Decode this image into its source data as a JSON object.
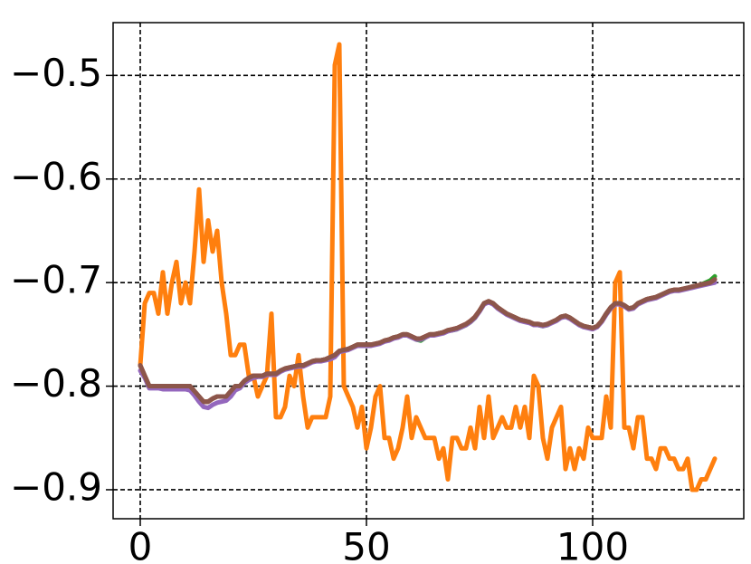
{
  "chart_data": {
    "type": "line",
    "x": [
      0,
      1,
      2,
      3,
      4,
      5,
      6,
      7,
      8,
      9,
      10,
      11,
      12,
      13,
      14,
      15,
      16,
      17,
      18,
      19,
      20,
      21,
      22,
      23,
      24,
      25,
      26,
      27,
      28,
      29,
      30,
      31,
      32,
      33,
      34,
      35,
      36,
      37,
      38,
      39,
      40,
      41,
      42,
      43,
      44,
      45,
      46,
      47,
      48,
      49,
      50,
      51,
      52,
      53,
      54,
      55,
      56,
      57,
      58,
      59,
      60,
      61,
      62,
      63,
      64,
      65,
      66,
      67,
      68,
      69,
      70,
      71,
      72,
      73,
      74,
      75,
      76,
      77,
      78,
      79,
      80,
      81,
      82,
      83,
      84,
      85,
      86,
      87,
      88,
      89,
      90,
      91,
      92,
      93,
      94,
      95,
      96,
      97,
      98,
      99,
      100,
      101,
      102,
      103,
      104,
      105,
      106,
      107,
      108,
      109,
      110,
      111,
      112,
      113,
      114,
      115,
      116,
      117,
      118,
      119,
      120,
      121,
      122,
      123,
      124,
      125,
      126,
      127
    ],
    "series": [
      {
        "name": "orange",
        "color": "#ff7f0e",
        "values": [
          -0.78,
          -0.72,
          -0.71,
          -0.71,
          -0.73,
          -0.69,
          -0.73,
          -0.7,
          -0.68,
          -0.72,
          -0.7,
          -0.72,
          -0.67,
          -0.61,
          -0.68,
          -0.64,
          -0.67,
          -0.65,
          -0.7,
          -0.73,
          -0.77,
          -0.77,
          -0.76,
          -0.76,
          -0.79,
          -0.79,
          -0.81,
          -0.8,
          -0.79,
          -0.73,
          -0.83,
          -0.83,
          -0.82,
          -0.79,
          -0.8,
          -0.77,
          -0.81,
          -0.84,
          -0.83,
          -0.83,
          -0.83,
          -0.83,
          -0.81,
          -0.49,
          -0.47,
          -0.8,
          -0.81,
          -0.82,
          -0.84,
          -0.82,
          -0.86,
          -0.84,
          -0.81,
          -0.8,
          -0.85,
          -0.85,
          -0.87,
          -0.86,
          -0.84,
          -0.81,
          -0.85,
          -0.83,
          -0.84,
          -0.85,
          -0.85,
          -0.85,
          -0.87,
          -0.86,
          -0.89,
          -0.85,
          -0.85,
          -0.86,
          -0.86,
          -0.84,
          -0.86,
          -0.82,
          -0.85,
          -0.81,
          -0.85,
          -0.84,
          -0.83,
          -0.84,
          -0.84,
          -0.82,
          -0.84,
          -0.82,
          -0.85,
          -0.79,
          -0.8,
          -0.85,
          -0.87,
          -0.84,
          -0.83,
          -0.82,
          -0.88,
          -0.86,
          -0.88,
          -0.86,
          -0.87,
          -0.84,
          -0.85,
          -0.85,
          -0.85,
          -0.81,
          -0.84,
          -0.7,
          -0.69,
          -0.84,
          -0.84,
          -0.86,
          -0.83,
          -0.83,
          -0.87,
          -0.87,
          -0.88,
          -0.86,
          -0.86,
          -0.87,
          -0.87,
          -0.88,
          -0.88,
          -0.87,
          -0.9,
          -0.9,
          -0.89,
          -0.89,
          -0.88,
          -0.87
        ]
      },
      {
        "name": "green",
        "color": "#2ca02c",
        "values": [
          -0.78,
          -0.79,
          -0.8,
          -0.8,
          -0.8,
          -0.8,
          -0.8,
          -0.8,
          -0.8,
          -0.8,
          -0.8,
          -0.8,
          -0.805,
          -0.81,
          -0.815,
          -0.815,
          -0.812,
          -0.81,
          -0.81,
          -0.81,
          -0.805,
          -0.8,
          -0.8,
          -0.795,
          -0.792,
          -0.79,
          -0.79,
          -0.79,
          -0.788,
          -0.788,
          -0.788,
          -0.785,
          -0.783,
          -0.782,
          -0.781,
          -0.78,
          -0.78,
          -0.778,
          -0.776,
          -0.775,
          -0.775,
          -0.774,
          -0.772,
          -0.77,
          -0.766,
          -0.765,
          -0.764,
          -0.762,
          -0.76,
          -0.76,
          -0.76,
          -0.76,
          -0.759,
          -0.758,
          -0.756,
          -0.755,
          -0.753,
          -0.752,
          -0.75,
          -0.75,
          -0.752,
          -0.755,
          -0.756,
          -0.753,
          -0.75,
          -0.75,
          -0.749,
          -0.748,
          -0.746,
          -0.746,
          -0.745,
          -0.743,
          -0.741,
          -0.738,
          -0.734,
          -0.727,
          -0.72,
          -0.718,
          -0.72,
          -0.724,
          -0.727,
          -0.73,
          -0.732,
          -0.734,
          -0.736,
          -0.737,
          -0.738,
          -0.74,
          -0.741,
          -0.742,
          -0.741,
          -0.738,
          -0.736,
          -0.733,
          -0.732,
          -0.734,
          -0.737,
          -0.74,
          -0.742,
          -0.743,
          -0.744,
          -0.742,
          -0.737,
          -0.73,
          -0.724,
          -0.72,
          -0.72,
          -0.722,
          -0.725,
          -0.724,
          -0.72,
          -0.718,
          -0.716,
          -0.715,
          -0.714,
          -0.712,
          -0.71,
          -0.708,
          -0.707,
          -0.707,
          -0.706,
          -0.705,
          -0.704,
          -0.703,
          -0.702,
          -0.7,
          -0.698,
          -0.694
        ]
      },
      {
        "name": "red",
        "color": "#d62728",
        "values": [
          -0.78,
          -0.79,
          -0.8,
          -0.8,
          -0.8,
          -0.8,
          -0.8,
          -0.8,
          -0.8,
          -0.8,
          -0.8,
          -0.8,
          -0.805,
          -0.81,
          -0.815,
          -0.815,
          -0.812,
          -0.81,
          -0.81,
          -0.81,
          -0.805,
          -0.8,
          -0.8,
          -0.795,
          -0.792,
          -0.79,
          -0.79,
          -0.79,
          -0.788,
          -0.788,
          -0.788,
          -0.785,
          -0.783,
          -0.782,
          -0.781,
          -0.78,
          -0.78,
          -0.778,
          -0.776,
          -0.775,
          -0.775,
          -0.774,
          -0.772,
          -0.77,
          -0.766,
          -0.765,
          -0.764,
          -0.762,
          -0.76,
          -0.76,
          -0.76,
          -0.76,
          -0.759,
          -0.758,
          -0.756,
          -0.755,
          -0.753,
          -0.752,
          -0.75,
          -0.75,
          -0.752,
          -0.754,
          -0.754,
          -0.752,
          -0.75,
          -0.75,
          -0.749,
          -0.748,
          -0.746,
          -0.745,
          -0.744,
          -0.742,
          -0.74,
          -0.737,
          -0.733,
          -0.727,
          -0.72,
          -0.718,
          -0.72,
          -0.724,
          -0.727,
          -0.73,
          -0.732,
          -0.734,
          -0.736,
          -0.737,
          -0.738,
          -0.74,
          -0.74,
          -0.741,
          -0.74,
          -0.738,
          -0.736,
          -0.733,
          -0.732,
          -0.734,
          -0.737,
          -0.74,
          -0.742,
          -0.743,
          -0.744,
          -0.742,
          -0.737,
          -0.73,
          -0.724,
          -0.72,
          -0.72,
          -0.722,
          -0.725,
          -0.724,
          -0.72,
          -0.718,
          -0.716,
          -0.715,
          -0.714,
          -0.712,
          -0.71,
          -0.708,
          -0.707,
          -0.707,
          -0.706,
          -0.705,
          -0.704,
          -0.703,
          -0.702,
          -0.701,
          -0.7,
          -0.697
        ]
      },
      {
        "name": "purple",
        "color": "#9467bd",
        "values": [
          -0.785,
          -0.792,
          -0.802,
          -0.802,
          -0.802,
          -0.803,
          -0.803,
          -0.803,
          -0.803,
          -0.803,
          -0.803,
          -0.804,
          -0.809,
          -0.815,
          -0.82,
          -0.821,
          -0.818,
          -0.816,
          -0.815,
          -0.814,
          -0.81,
          -0.804,
          -0.802,
          -0.797,
          -0.794,
          -0.792,
          -0.791,
          -0.791,
          -0.789,
          -0.789,
          -0.789,
          -0.786,
          -0.784,
          -0.783,
          -0.782,
          -0.781,
          -0.781,
          -0.779,
          -0.777,
          -0.776,
          -0.776,
          -0.775,
          -0.774,
          -0.772,
          -0.767,
          -0.766,
          -0.765,
          -0.763,
          -0.761,
          -0.761,
          -0.761,
          -0.761,
          -0.76,
          -0.759,
          -0.757,
          -0.756,
          -0.754,
          -0.753,
          -0.751,
          -0.751,
          -0.753,
          -0.755,
          -0.755,
          -0.753,
          -0.751,
          -0.751,
          -0.75,
          -0.749,
          -0.747,
          -0.746,
          -0.745,
          -0.743,
          -0.741,
          -0.738,
          -0.734,
          -0.728,
          -0.721,
          -0.719,
          -0.721,
          -0.725,
          -0.728,
          -0.731,
          -0.733,
          -0.735,
          -0.737,
          -0.738,
          -0.739,
          -0.741,
          -0.741,
          -0.742,
          -0.741,
          -0.739,
          -0.737,
          -0.734,
          -0.733,
          -0.735,
          -0.738,
          -0.741,
          -0.743,
          -0.744,
          -0.745,
          -0.743,
          -0.738,
          -0.731,
          -0.725,
          -0.721,
          -0.721,
          -0.723,
          -0.726,
          -0.725,
          -0.721,
          -0.719,
          -0.717,
          -0.716,
          -0.715,
          -0.713,
          -0.711,
          -0.709,
          -0.708,
          -0.708,
          -0.707,
          -0.706,
          -0.705,
          -0.704,
          -0.703,
          -0.702,
          -0.701,
          -0.7
        ]
      },
      {
        "name": "brown",
        "color": "#8c564b",
        "values": [
          -0.78,
          -0.79,
          -0.8,
          -0.8,
          -0.8,
          -0.8,
          -0.8,
          -0.8,
          -0.8,
          -0.8,
          -0.8,
          -0.8,
          -0.805,
          -0.81,
          -0.815,
          -0.815,
          -0.812,
          -0.81,
          -0.81,
          -0.81,
          -0.805,
          -0.8,
          -0.8,
          -0.795,
          -0.792,
          -0.79,
          -0.79,
          -0.79,
          -0.788,
          -0.788,
          -0.788,
          -0.785,
          -0.783,
          -0.782,
          -0.781,
          -0.78,
          -0.78,
          -0.778,
          -0.776,
          -0.775,
          -0.775,
          -0.774,
          -0.772,
          -0.77,
          -0.766,
          -0.765,
          -0.764,
          -0.762,
          -0.76,
          -0.76,
          -0.76,
          -0.76,
          -0.759,
          -0.758,
          -0.756,
          -0.755,
          -0.753,
          -0.752,
          -0.75,
          -0.75,
          -0.752,
          -0.754,
          -0.754,
          -0.752,
          -0.75,
          -0.75,
          -0.749,
          -0.748,
          -0.746,
          -0.745,
          -0.744,
          -0.742,
          -0.74,
          -0.737,
          -0.733,
          -0.727,
          -0.72,
          -0.718,
          -0.72,
          -0.724,
          -0.727,
          -0.73,
          -0.732,
          -0.734,
          -0.736,
          -0.737,
          -0.738,
          -0.74,
          -0.74,
          -0.741,
          -0.74,
          -0.738,
          -0.736,
          -0.733,
          -0.732,
          -0.734,
          -0.737,
          -0.74,
          -0.742,
          -0.743,
          -0.744,
          -0.742,
          -0.737,
          -0.73,
          -0.724,
          -0.72,
          -0.72,
          -0.722,
          -0.725,
          -0.724,
          -0.72,
          -0.718,
          -0.716,
          -0.715,
          -0.714,
          -0.712,
          -0.71,
          -0.708,
          -0.707,
          -0.707,
          -0.706,
          -0.705,
          -0.704,
          -0.703,
          -0.702,
          -0.701,
          -0.7,
          -0.697
        ]
      }
    ],
    "xlim": [
      -6,
      133.4
    ],
    "ylim": [
      -0.928,
      -0.449
    ],
    "xticks": [
      0,
      50,
      100
    ],
    "yticks": [
      {
        "value": -0.5,
        "label": "−0.5"
      },
      {
        "value": -0.6,
        "label": "−0.6"
      },
      {
        "value": -0.7,
        "label": "−0.7"
      },
      {
        "value": -0.8,
        "label": "−0.8"
      },
      {
        "value": -0.9,
        "label": "−0.9"
      }
    ],
    "grid": true
  }
}
